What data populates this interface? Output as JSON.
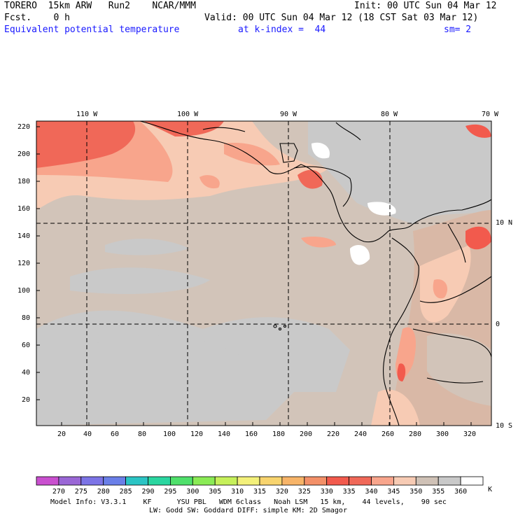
{
  "header": {
    "model": "TORERO  15km ARW   Run2    NCAR/MMM",
    "init": "Init: 00 UTC Sun 04 Mar 12",
    "fcst": "Fcst.    0 h",
    "valid": "Valid: 00 UTC Sun 04 Mar 12 (18 CST Sat 03 Mar 12)",
    "field": "Equivalent potential temperature",
    "level": "at k-index =  44",
    "smooth": "sm= 2"
  },
  "map": {
    "lon_labels": [
      "110 W",
      "100 W",
      "90 W",
      "80 W",
      "70 W"
    ],
    "lat_labels_right": [
      "10 N",
      "0",
      "10 S"
    ],
    "y_ticks": [
      "220",
      "200",
      "180",
      "160",
      "140",
      "120",
      "100",
      "80",
      "60",
      "40",
      "20"
    ],
    "x_ticks": [
      "20",
      "40",
      "60",
      "80",
      "100",
      "120",
      "140",
      "160",
      "180",
      "200",
      "220",
      "240",
      "260",
      "280",
      "300",
      "320"
    ]
  },
  "colorbar": {
    "unit": "K",
    "labels": [
      "270",
      "275",
      "280",
      "285",
      "290",
      "295",
      "300",
      "305",
      "310",
      "315",
      "320",
      "325",
      "330",
      "335",
      "340",
      "345",
      "350",
      "355",
      "360"
    ],
    "colors": [
      "#c94fcf",
      "#9a67d6",
      "#7c74e6",
      "#6a7fe8",
      "#2bc4c4",
      "#2ad6a0",
      "#4fe06b",
      "#8aeb55",
      "#c6f05a",
      "#f3f07a",
      "#f8d46e",
      "#f7b468",
      "#f39068",
      "#f25a4d",
      "#f06858",
      "#f8a58c",
      "#f7cbb4",
      "#cfc1b6",
      "#c9c9c9",
      "#ffffff"
    ]
  },
  "footer": {
    "line1": "Model Info: V3.3.1    KF      YSU PBL   WDM 6class   Noah LSM   15 km,    44 levels,    90 sec",
    "line2": "LW: Godd SW: Goddard DIFF: simple KM: 2D Smagor"
  }
}
